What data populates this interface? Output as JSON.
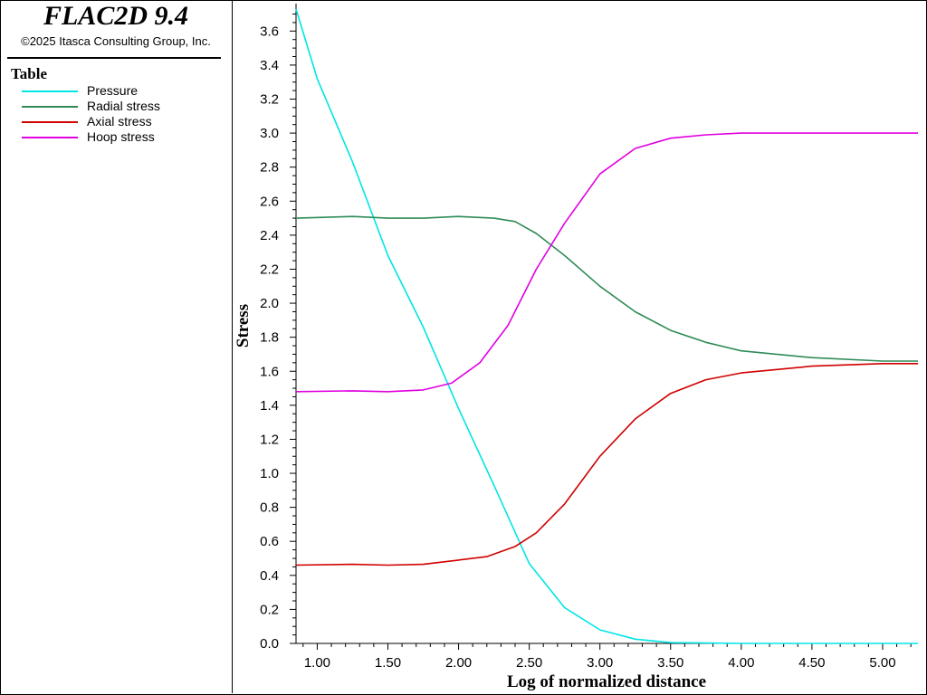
{
  "header": {
    "app_title": "FLAC2D 9.4",
    "copyright": "©2025 Itasca Consulting Group, Inc."
  },
  "legend": {
    "title": "Table",
    "entries": [
      {
        "label": "Pressure",
        "color": "#00e5e5"
      },
      {
        "label": "Radial stress",
        "color": "#2e8b57"
      },
      {
        "label": "Axial stress",
        "color": "#d00000"
      },
      {
        "label": "Hoop stress",
        "color": "#e000e0"
      }
    ]
  },
  "chart_data": {
    "type": "line",
    "xlabel": "Log of normalized distance",
    "ylabel": "Stress",
    "xlim": [
      0.85,
      5.25
    ],
    "ylim": [
      0,
      3.74
    ],
    "x_ticks": [
      "1.00",
      "1.50",
      "2.00",
      "2.50",
      "3.00",
      "3.50",
      "4.00",
      "4.50",
      "5.00"
    ],
    "y_ticks": [
      "0.0",
      "0.2",
      "0.4",
      "0.6",
      "0.8",
      "1.0",
      "1.2",
      "1.4",
      "1.6",
      "1.8",
      "2.0",
      "2.2",
      "2.4",
      "2.6",
      "2.8",
      "3.0",
      "3.2",
      "3.4",
      "3.6"
    ],
    "grid": false,
    "series": [
      {
        "name": "Pressure",
        "color": "#00e5e5",
        "points": [
          [
            0.85,
            3.73
          ],
          [
            1.0,
            3.32
          ],
          [
            1.25,
            2.83
          ],
          [
            1.5,
            2.28
          ],
          [
            1.75,
            1.86
          ],
          [
            2.0,
            1.38
          ],
          [
            2.25,
            0.93
          ],
          [
            2.5,
            0.47
          ],
          [
            2.75,
            0.21
          ],
          [
            3.0,
            0.08
          ],
          [
            3.25,
            0.025
          ],
          [
            3.5,
            0.005
          ],
          [
            4.0,
            0.0
          ],
          [
            5.25,
            0.0
          ]
        ]
      },
      {
        "name": "Radial stress",
        "color": "#2e8b57",
        "points": [
          [
            0.85,
            2.5
          ],
          [
            1.25,
            2.51
          ],
          [
            1.5,
            2.5
          ],
          [
            1.75,
            2.5
          ],
          [
            2.0,
            2.51
          ],
          [
            2.25,
            2.5
          ],
          [
            2.4,
            2.48
          ],
          [
            2.55,
            2.41
          ],
          [
            2.75,
            2.28
          ],
          [
            3.0,
            2.1
          ],
          [
            3.25,
            1.95
          ],
          [
            3.5,
            1.84
          ],
          [
            3.75,
            1.77
          ],
          [
            4.0,
            1.72
          ],
          [
            4.5,
            1.68
          ],
          [
            5.0,
            1.66
          ],
          [
            5.25,
            1.66
          ]
        ]
      },
      {
        "name": "Axial stress",
        "color": "#d00000",
        "points": [
          [
            0.85,
            0.46
          ],
          [
            1.25,
            0.465
          ],
          [
            1.5,
            0.46
          ],
          [
            1.75,
            0.465
          ],
          [
            2.0,
            0.49
          ],
          [
            2.2,
            0.51
          ],
          [
            2.4,
            0.57
          ],
          [
            2.55,
            0.65
          ],
          [
            2.75,
            0.82
          ],
          [
            3.0,
            1.1
          ],
          [
            3.25,
            1.32
          ],
          [
            3.5,
            1.47
          ],
          [
            3.75,
            1.55
          ],
          [
            4.0,
            1.59
          ],
          [
            4.5,
            1.63
          ],
          [
            5.0,
            1.645
          ],
          [
            5.25,
            1.645
          ]
        ]
      },
      {
        "name": "Hoop stress",
        "color": "#e000e0",
        "points": [
          [
            0.85,
            1.48
          ],
          [
            1.25,
            1.485
          ],
          [
            1.5,
            1.48
          ],
          [
            1.75,
            1.49
          ],
          [
            1.95,
            1.53
          ],
          [
            2.15,
            1.65
          ],
          [
            2.35,
            1.87
          ],
          [
            2.55,
            2.2
          ],
          [
            2.75,
            2.47
          ],
          [
            3.0,
            2.76
          ],
          [
            3.25,
            2.91
          ],
          [
            3.5,
            2.97
          ],
          [
            3.75,
            2.99
          ],
          [
            4.0,
            3.0
          ],
          [
            5.25,
            3.0
          ]
        ]
      }
    ]
  }
}
